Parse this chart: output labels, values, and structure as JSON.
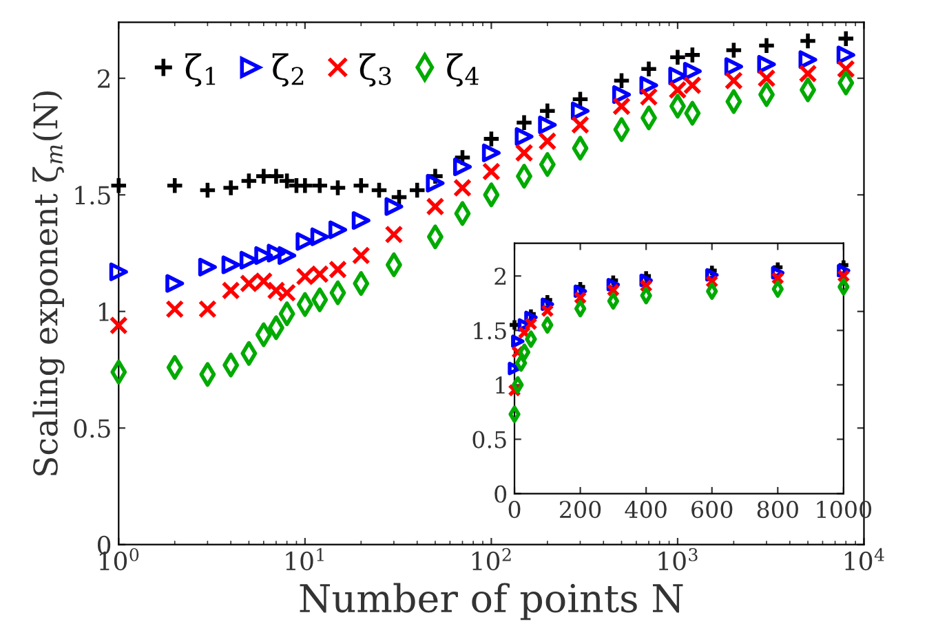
{
  "chart_data": [
    {
      "type": "scatter",
      "xlabel": "Number of points N",
      "ylabel": "Scaling exponent ζ$_{m}$(N)",
      "log": "x",
      "xlim": [
        1,
        10000
      ],
      "ylim": [
        0,
        2.24
      ],
      "xticks": [
        {
          "value": 1,
          "label": "10$^{0}$"
        },
        {
          "value": 10,
          "label": "10$^{1}$"
        },
        {
          "value": 100,
          "label": "10$^{2}$"
        },
        {
          "value": 1000,
          "label": "10$^{3}$"
        },
        {
          "value": 10000,
          "label": "10$^{4}$"
        }
      ],
      "yticks": [
        0,
        0.5,
        1,
        1.5,
        2
      ],
      "grid": false,
      "legend": "top left",
      "series": [
        {
          "name": "ζ$_{1}$",
          "color": "#000000",
          "marker": "plus",
          "x": [
            1,
            2,
            3,
            4,
            5,
            6,
            7,
            8,
            9,
            10,
            12,
            15,
            20,
            25,
            32,
            40,
            50,
            70,
            100,
            150,
            200,
            300,
            500,
            700,
            1000,
            1200,
            2000,
            3000,
            5000,
            8000
          ],
          "values": [
            1.54,
            1.54,
            1.52,
            1.53,
            1.56,
            1.58,
            1.58,
            1.56,
            1.54,
            1.54,
            1.54,
            1.53,
            1.54,
            1.52,
            1.49,
            1.52,
            1.58,
            1.66,
            1.74,
            1.81,
            1.86,
            1.91,
            1.99,
            2.04,
            2.09,
            2.1,
            2.12,
            2.14,
            2.16,
            2.17
          ]
        },
        {
          "name": "ζ$_{2}$",
          "color": "#0000ff",
          "marker": "triangle",
          "x": [
            1,
            2,
            3,
            4,
            5,
            6,
            7,
            8,
            10,
            12,
            15,
            20,
            30,
            50,
            70,
            100,
            150,
            200,
            300,
            500,
            700,
            1000,
            1200,
            2000,
            3000,
            5000,
            8000
          ],
          "values": [
            1.17,
            1.12,
            1.19,
            1.2,
            1.22,
            1.24,
            1.25,
            1.24,
            1.3,
            1.32,
            1.35,
            1.39,
            1.45,
            1.55,
            1.62,
            1.68,
            1.75,
            1.8,
            1.86,
            1.93,
            1.97,
            2.01,
            2.03,
            2.05,
            2.06,
            2.08,
            2.1
          ]
        },
        {
          "name": "ζ$_{3}$",
          "color": "#ff0000",
          "marker": "cross",
          "x": [
            1,
            2,
            3,
            4,
            5,
            6,
            7,
            8,
            10,
            12,
            15,
            20,
            30,
            50,
            70,
            100,
            150,
            200,
            300,
            500,
            700,
            1000,
            1200,
            2000,
            3000,
            5000,
            8000
          ],
          "values": [
            0.94,
            1.01,
            1.01,
            1.09,
            1.12,
            1.13,
            1.09,
            1.08,
            1.15,
            1.16,
            1.18,
            1.24,
            1.33,
            1.45,
            1.53,
            1.6,
            1.68,
            1.73,
            1.8,
            1.88,
            1.92,
            1.95,
            1.97,
            1.99,
            2.0,
            2.02,
            2.04
          ]
        },
        {
          "name": "ζ$_{4}$",
          "color": "#00aa00",
          "marker": "diamond",
          "x": [
            1,
            2,
            3,
            4,
            5,
            6,
            7,
            8,
            10,
            12,
            15,
            20,
            30,
            50,
            70,
            100,
            150,
            200,
            300,
            500,
            700,
            1000,
            1200,
            2000,
            3000,
            5000,
            8000
          ],
          "values": [
            0.74,
            0.76,
            0.73,
            0.77,
            0.82,
            0.9,
            0.93,
            0.99,
            1.03,
            1.05,
            1.08,
            1.12,
            1.2,
            1.32,
            1.42,
            1.5,
            1.58,
            1.63,
            1.7,
            1.78,
            1.83,
            1.88,
            1.85,
            1.9,
            1.93,
            1.95,
            1.98
          ]
        }
      ]
    },
    {
      "type": "scatter",
      "xlim": [
        0,
        1000
      ],
      "ylim": [
        0,
        2.3
      ],
      "xticks": [
        0,
        200,
        400,
        600,
        800,
        1000
      ],
      "yticks": [
        0,
        0.5,
        1,
        1.5,
        2
      ],
      "grid": false,
      "series": [
        {
          "color": "#000000",
          "marker": "plus",
          "x": [
            0,
            20,
            50,
            100,
            200,
            300,
            400,
            600,
            800,
            1000
          ],
          "values": [
            1.55,
            null,
            1.65,
            1.78,
            1.9,
            1.96,
            2.0,
            2.05,
            2.08,
            2.1
          ]
        },
        {
          "color": "#0000ff",
          "marker": "triangle",
          "x": [
            0,
            10,
            30,
            50,
            100,
            200,
            300,
            400,
            600,
            800,
            1000
          ],
          "values": [
            1.15,
            1.4,
            1.55,
            1.62,
            1.74,
            1.86,
            1.92,
            1.96,
            2.01,
            2.03,
            2.05
          ]
        },
        {
          "color": "#ff0000",
          "marker": "cross",
          "x": [
            0,
            10,
            30,
            50,
            100,
            200,
            300,
            400,
            600,
            800,
            1000
          ],
          "values": [
            0.95,
            1.3,
            1.48,
            1.56,
            1.68,
            1.8,
            1.87,
            1.91,
            1.95,
            1.98,
            2.0
          ]
        },
        {
          "color": "#00aa00",
          "marker": "diamond",
          "x": [
            0,
            10,
            20,
            30,
            50,
            100,
            200,
            300,
            400,
            600,
            800,
            1000
          ],
          "values": [
            0.73,
            1.0,
            1.2,
            1.3,
            1.42,
            1.55,
            1.7,
            1.77,
            1.82,
            1.86,
            1.88,
            1.9
          ]
        }
      ]
    }
  ]
}
